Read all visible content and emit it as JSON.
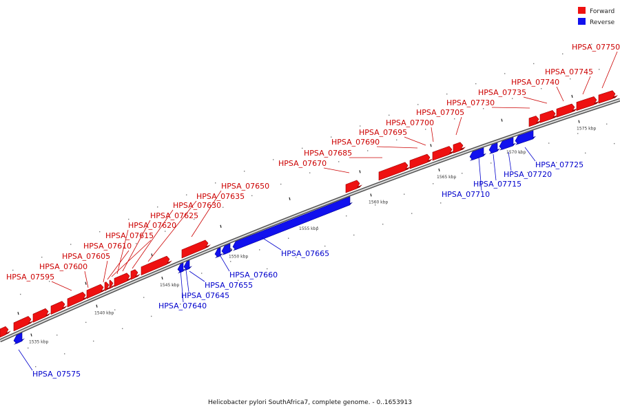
{
  "colors": {
    "forward": "#ee1111",
    "forward_dark": "#990000",
    "reverse": "#1111ee",
    "reverse_dark": "#000099",
    "backbone": "#888888",
    "fwd_label": "#cc0000",
    "rev_label": "#0000cc"
  },
  "legend": {
    "forward_label": "Forward",
    "reverse_label": "Reverse"
  },
  "caption": "Helicobacter pylori SouthAfrica7, complete genome. - 0..1653913",
  "ticks": [
    "1535 kbp",
    "1540 kbp",
    "1545 kbp",
    "1550 kbp",
    "1555 kbp",
    "1560 kbp",
    "1565 kbp",
    "1570 kbp",
    "1575 kbp"
  ],
  "forward_labels": [
    "HPSA_07595",
    "HPSA_07600",
    "HPSA_07605",
    "HPSA_07610",
    "HPSA_07615",
    "HPSA_07620",
    "HPSA_07625",
    "HPSA_07630",
    "HPSA_07635",
    "HPSA_07650",
    "HPSA_07670",
    "HPSA_07685",
    "HPSA_07690",
    "HPSA_07695",
    "HPSA_07700",
    "HPSA_07705",
    "HPSA_07730",
    "HPSA_07735",
    "HPSA_07740",
    "HPSA_07745",
    "HPSA_07750"
  ],
  "reverse_labels": [
    "HPSA_07575",
    "HPSA_07640",
    "HPSA_07645",
    "HPSA_07655",
    "HPSA_07660",
    "HPSA_07665",
    "HPSA_07710",
    "HPSA_07715",
    "HPSA_07720",
    "HPSA_07725"
  ]
}
